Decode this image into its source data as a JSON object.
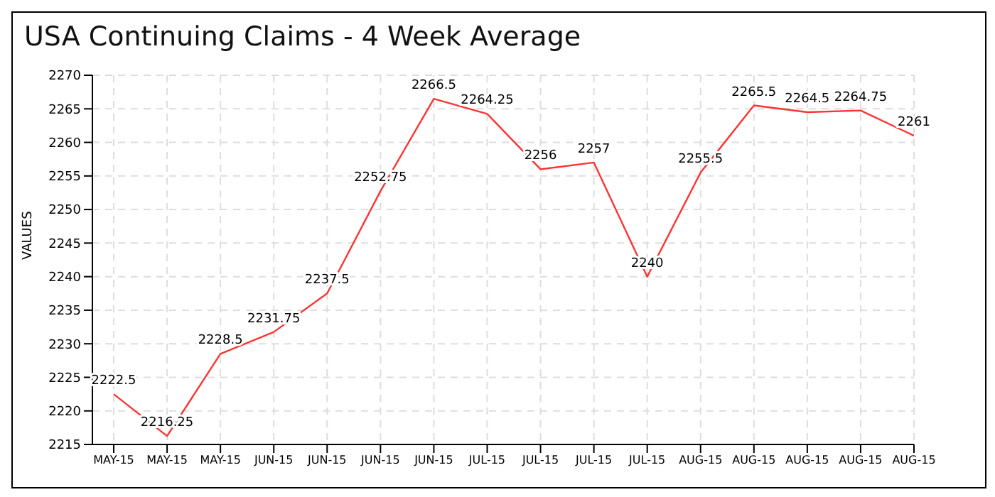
{
  "chart_data": {
    "type": "line",
    "title": "USA Continuing Claims - 4 Week Average",
    "ylabel": "VALUES",
    "categories": [
      "MAY-15",
      "MAY-15",
      "MAY-15",
      "JUN-15",
      "JUN-15",
      "JUN-15",
      "JUN-15",
      "JUL-15",
      "JUL-15",
      "JUL-15",
      "JUL-15",
      "AUG-15",
      "AUG-15",
      "AUG-15",
      "AUG-15",
      "AUG-15"
    ],
    "series": [
      {
        "color": "#ff3333",
        "values": [
          2222.5,
          2216.25,
          2228.5,
          2231.75,
          2237.5,
          2252.75,
          2266.5,
          2264.25,
          2256,
          2257,
          2240,
          2255.5,
          2265.5,
          2264.5,
          2264.75,
          2261
        ]
      }
    ],
    "ylim": [
      2215,
      2270
    ],
    "yticks": [
      2215,
      2220,
      2225,
      2230,
      2235,
      2240,
      2245,
      2250,
      2255,
      2260,
      2265,
      2270
    ],
    "grid": true,
    "data_labels": true,
    "marker": "none",
    "line_style": "solid"
  }
}
